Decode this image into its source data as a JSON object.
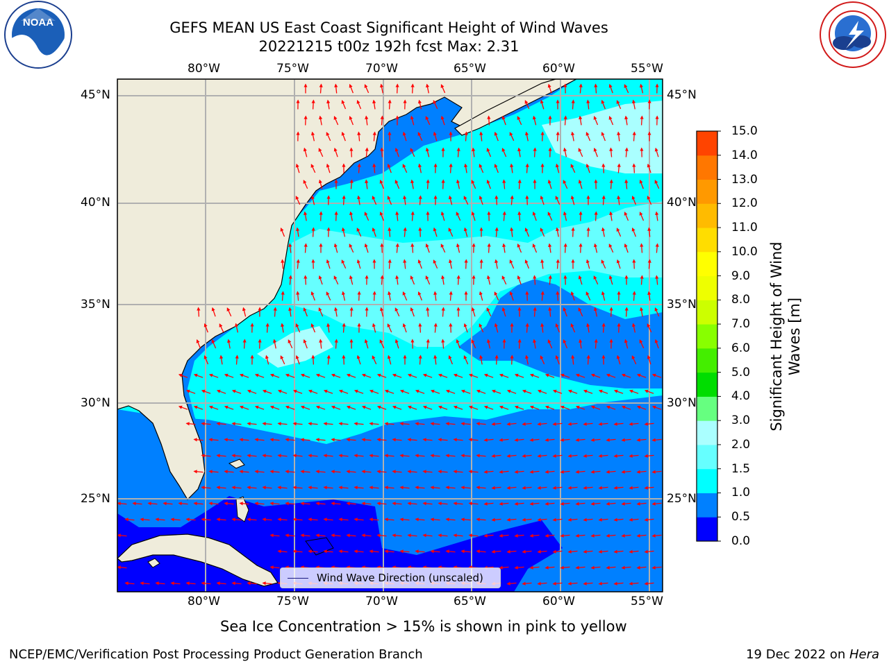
{
  "header": {
    "title_line1": "GEFS MEAN US East Coast Significant Height of Wind Waves",
    "title_line2": "20221215 t00z 192h fcst   Max: 2.31"
  },
  "logos": {
    "left": {
      "name": "noaa-logo",
      "text": "NOAA",
      "ring_text": "NATIONAL OCEANIC AND ATMOSPHERIC ADMINISTRATION · U.S. DEPARTMENT OF COMMERCE"
    },
    "right": {
      "name": "nws-logo",
      "ring_text": "NATIONAL WEATHER SERVICE"
    }
  },
  "map": {
    "lon_ticks": [
      "80°W",
      "75°W",
      "70°W",
      "65°W",
      "60°W",
      "55°W"
    ],
    "lat_ticks": [
      "45°N",
      "40°N",
      "35°N",
      "30°N",
      "25°N"
    ],
    "lon_range": [
      -85,
      -54.2
    ],
    "lat_range": [
      20.5,
      45.8
    ],
    "colors": {
      "land": "#efecdb",
      "grid": "#b0b0b0",
      "arrow": "#ff0000",
      "coast": "#000000"
    },
    "legend_label": "Wind Wave Direction (unscaled)"
  },
  "colorbar": {
    "label": "Significant Height of Wind Waves [m]",
    "ticks": [
      "15.0",
      "14.0",
      "13.0",
      "12.0",
      "11.0",
      "10.0",
      "9.0",
      "8.0",
      "7.0",
      "6.0",
      "5.0",
      "4.0",
      "3.0",
      "2.0",
      "1.5",
      "1.0",
      "0.5",
      "0.0"
    ],
    "colors": [
      "#0000ff",
      "#0080ff",
      "#00ffff",
      "#66ffff",
      "#aaffff",
      "#66ff80",
      "#00dd00",
      "#44ee00",
      "#88ff00",
      "#ccff00",
      "#eeff00",
      "#ffff00",
      "#ffdd00",
      "#ffbb00",
      "#ff9900",
      "#ff7700",
      "#ff4400",
      "#ff0000"
    ]
  },
  "footer": {
    "note": "Sea Ice Concentration > 15% is shown in pink to yellow",
    "left": "NCEP/EMC/Verification Post Processing Product Generation Branch",
    "right_date": "19 Dec 2022 on ",
    "right_machine": "Hera"
  }
}
